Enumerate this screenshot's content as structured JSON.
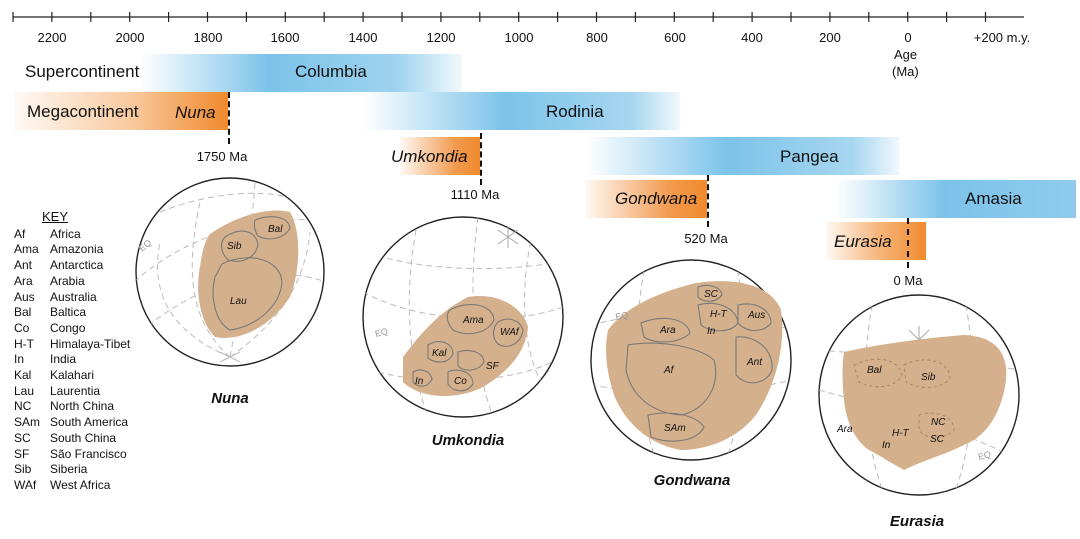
{
  "axis": {
    "ticks": [
      "2200",
      "2000",
      "1800",
      "1600",
      "1400",
      "1200",
      "1000",
      "800",
      "600",
      "400",
      "200",
      "0",
      "+200 m.y."
    ],
    "age_unit": "Age",
    "age_unit2": "(Ma)"
  },
  "rows": {
    "supercontinent": "Supercontinent",
    "megacontinent": "Megacontinent"
  },
  "supercontinents": [
    {
      "name": "Columbia"
    },
    {
      "name": "Rodinia"
    },
    {
      "name": "Pangea"
    },
    {
      "name": "Amasia"
    }
  ],
  "megacontinents": [
    {
      "name": "Nuna",
      "age_label": "1750 Ma"
    },
    {
      "name": "Umkondia",
      "age_label": "1110 Ma"
    },
    {
      "name": "Gondwana",
      "age_label": "520 Ma"
    },
    {
      "name": "Eurasia",
      "age_label": "0 Ma"
    }
  ],
  "globes": [
    {
      "title": "Nuna",
      "labels": [
        "Sib",
        "Bal",
        "Lau"
      ],
      "eq": "EQ"
    },
    {
      "title": "Umkondia",
      "labels": [
        "Ama",
        "WAf",
        "Kal",
        "SF",
        "In",
        "Co"
      ],
      "eq": "EQ"
    },
    {
      "title": "Gondwana",
      "labels": [
        "SC",
        "H-T",
        "Aus",
        "Ara",
        "In",
        "Ant",
        "Af",
        "SAm"
      ],
      "eq": "EQ"
    },
    {
      "title": "Eurasia",
      "labels": [
        "Bal",
        "Sib",
        "NC",
        "Ara",
        "H-T",
        "In",
        "SC"
      ],
      "eq": "EQ"
    }
  ],
  "key": {
    "title": "KEY",
    "items": [
      {
        "abbr": "Af",
        "name": "Africa"
      },
      {
        "abbr": "Ama",
        "name": "Amazonia"
      },
      {
        "abbr": "Ant",
        "name": "Antarctica"
      },
      {
        "abbr": "Ara",
        "name": "Arabia"
      },
      {
        "abbr": "Aus",
        "name": "Australia"
      },
      {
        "abbr": "Bal",
        "name": "Baltica"
      },
      {
        "abbr": "Co",
        "name": "Congo"
      },
      {
        "abbr": "H-T",
        "name": "Himalaya-Tibet"
      },
      {
        "abbr": "In",
        "name": "India"
      },
      {
        "abbr": "Kal",
        "name": "Kalahari"
      },
      {
        "abbr": "Lau",
        "name": "Laurentia"
      },
      {
        "abbr": "NC",
        "name": "North China"
      },
      {
        "abbr": "SAm",
        "name": "South America"
      },
      {
        "abbr": "SC",
        "name": "South China"
      },
      {
        "abbr": "SF",
        "name": "São Francisco"
      },
      {
        "abbr": "Sib",
        "name": "Siberia"
      },
      {
        "abbr": "WAf",
        "name": "West Africa"
      }
    ]
  },
  "colors": {
    "supercontinent_bar": "#7cc3ea",
    "megacontinent_bar": "#f08a2c",
    "landmass": "#d4b08c",
    "block_outline": "#7a7a7a",
    "graticule": "#b8b8b8"
  }
}
